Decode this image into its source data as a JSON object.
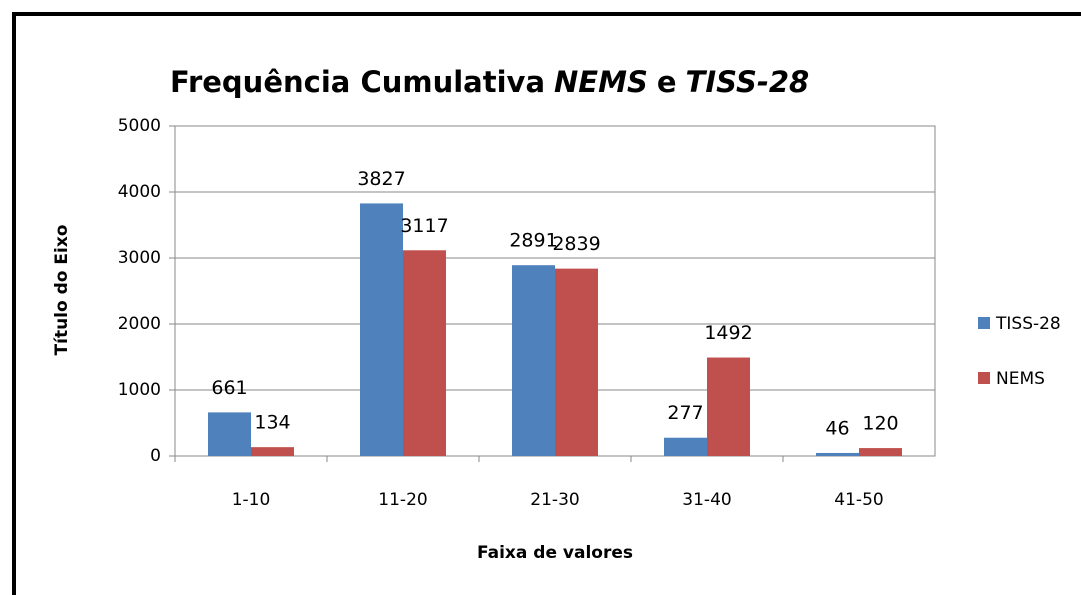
{
  "chart_data": {
    "type": "bar",
    "title_parts": [
      "Frequência Cumulativa",
      "NEMS",
      "e",
      "TISS-28"
    ],
    "x_label": "Faixa de valores",
    "y_label": "Título do Eixo",
    "categories": [
      "1-10",
      "11-20",
      "21-30",
      "31-40",
      "41-50"
    ],
    "series": [
      {
        "name": "TISS-28",
        "color": "#4f81bd",
        "values": [
          661,
          3827,
          2891,
          277,
          46
        ]
      },
      {
        "name": "NEMS",
        "color": "#c0504d",
        "values": [
          134,
          3117,
          2839,
          1492,
          120
        ]
      }
    ],
    "ylim": [
      0,
      5000
    ],
    "yticks": [
      0,
      1000,
      2000,
      3000,
      4000,
      5000
    ],
    "grid": true,
    "legend": "right"
  }
}
